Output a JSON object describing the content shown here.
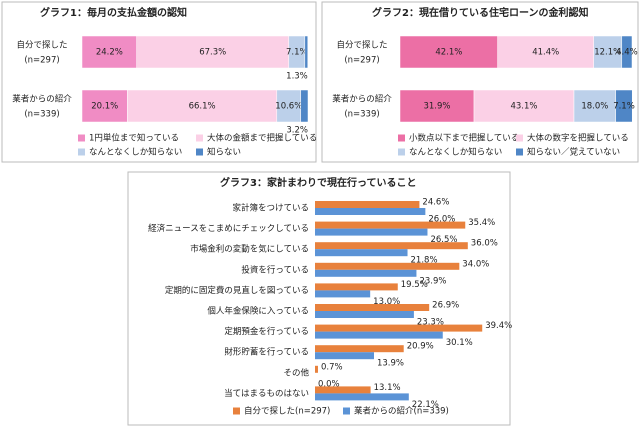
{
  "chart_data": [
    {
      "type": "stacked_bar",
      "title": "グラフ1：毎月の支払金額の認知",
      "categories": [
        "自分で探した",
        "業者からの紹介"
      ],
      "category_notes": [
        "(n=297)",
        "(n=339)"
      ],
      "xlim": [
        0,
        100
      ],
      "series": [
        {
          "name": "1円単位まで知っている",
          "color": "#f08cc4",
          "values": [
            24.2,
            20.1
          ],
          "value_labels": [
            "24.2%",
            "20.1%"
          ]
        },
        {
          "name": "大体の金額まで把握している",
          "color": "#fbd0e6",
          "values": [
            67.3,
            66.1
          ],
          "value_labels": [
            "67.3%",
            "66.1%"
          ]
        },
        {
          "name": "なんとなくしか知らない",
          "color": "#bcd0ea",
          "values": [
            7.1,
            10.6
          ],
          "value_labels": [
            "7.1%",
            "10.6%"
          ]
        },
        {
          "name": "知らない",
          "color": "#4f86c6",
          "values": [
            1.3,
            3.2
          ],
          "value_labels": [
            "1.3%",
            "3.2%"
          ]
        }
      ]
    },
    {
      "type": "stacked_bar",
      "title": "グラフ2：現在借りている住宅ローンの金利認知",
      "categories": [
        "自分で探した",
        "業者からの紹介"
      ],
      "category_notes": [
        "(n=297)",
        "(n=339)"
      ],
      "xlim": [
        0,
        100
      ],
      "series": [
        {
          "name": "小数点以下まで把握している",
          "color": "#ec6fa5",
          "values": [
            42.1,
            31.9
          ],
          "value_labels": [
            "42.1%",
            "31.9%"
          ]
        },
        {
          "name": "大体の数字を把握している",
          "color": "#fbd0e6",
          "values": [
            41.4,
            43.1
          ],
          "value_labels": [
            "41.4%",
            "43.1%"
          ]
        },
        {
          "name": "なんとなくしか知らない",
          "color": "#bcd0ea",
          "values": [
            12.1,
            18.0
          ],
          "value_labels": [
            "12.1%",
            "18.0%"
          ]
        },
        {
          "name": "知らない／覚えていない",
          "color": "#4f86c6",
          "values": [
            4.4,
            7.1
          ],
          "value_labels": [
            "4.4%",
            "7.1%"
          ]
        }
      ]
    },
    {
      "type": "grouped_bar",
      "title": "グラフ3：家計まわりで現在行っていること",
      "categories": [
        "家計簿をつけている",
        "経済ニュースをこまめにチェックしている",
        "市場金利の変動を気にしている",
        "投資を行っている",
        "定期的に固定費の見直しを図っている",
        "個人年金保険に入っている",
        "定期預金を行っている",
        "財形貯蓄を行っている",
        "その他",
        "当てはまるものはない"
      ],
      "xlim": [
        0,
        45
      ],
      "series": [
        {
          "name": "自分で探した(n=297)",
          "color": "#e8813c",
          "values": [
            24.6,
            35.4,
            36.0,
            34.0,
            19.5,
            26.9,
            39.4,
            20.9,
            0.7,
            13.1
          ],
          "value_labels": [
            "24.6%",
            "35.4%",
            "36.0%",
            "34.0%",
            "19.5%",
            "26.9%",
            "39.4%",
            "20.9%",
            "0.7%",
            "13.1%"
          ]
        },
        {
          "name": "業者からの紹介(n=339)",
          "color": "#5b93d6",
          "values": [
            26.0,
            26.5,
            21.8,
            23.9,
            13.0,
            23.3,
            30.1,
            13.9,
            0.0,
            22.1
          ],
          "value_labels": [
            "26.0%",
            "26.5%",
            "21.8%",
            "23.9%",
            "13.0%",
            "23.3%",
            "30.1%",
            "13.9%",
            "0.0%",
            "22.1%"
          ]
        }
      ]
    }
  ]
}
